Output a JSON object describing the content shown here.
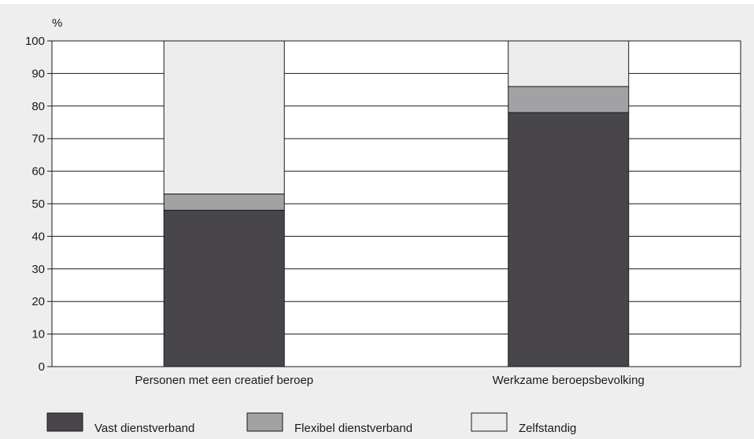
{
  "chart_data": {
    "type": "bar",
    "stacked": true,
    "title": "",
    "xlabel": "",
    "ylabel": "%",
    "ylim": [
      0,
      100
    ],
    "yticks": [
      0,
      10,
      20,
      30,
      40,
      50,
      60,
      70,
      80,
      90,
      100
    ],
    "grid": true,
    "legend_position": "bottom",
    "categories": [
      "Personen met een creatief beroep",
      "Werkzame beroepsbevolking"
    ],
    "series": [
      {
        "name": "Vast dienstverband",
        "color": "#48464a",
        "values": [
          48,
          78
        ]
      },
      {
        "name": "Flexibel dienstverband",
        "color": "#a2a1a3",
        "values": [
          5,
          8
        ]
      },
      {
        "name": "Zelfstandig",
        "color": "#ececed",
        "values": [
          47,
          14
        ]
      }
    ]
  }
}
